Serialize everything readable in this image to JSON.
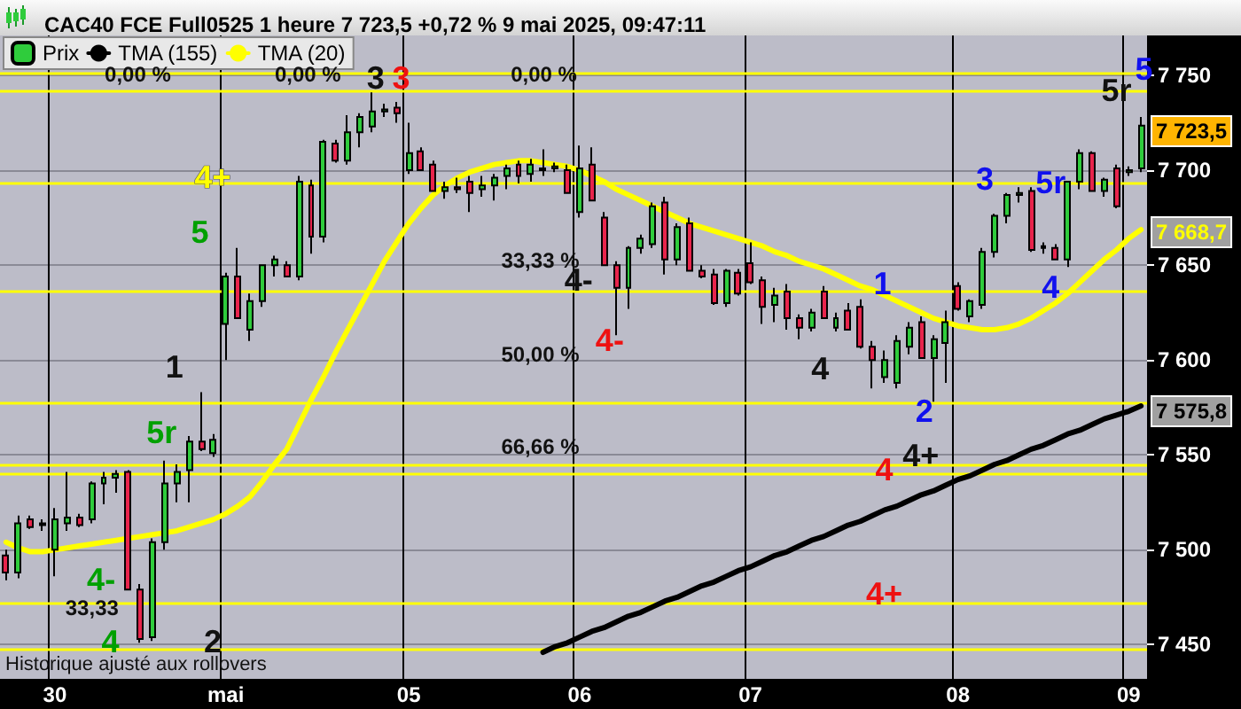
{
  "chart_data": {
    "type": "candlestick",
    "title": "CAC40 FCE Full0525 1 heure 7 723,5 +0,72 % 9 mai 2025, 09:47:11",
    "categories": [
      null,
      null,
      null,
      null,
      "30",
      null,
      null,
      null,
      null,
      null,
      null,
      null,
      null,
      null,
      null,
      null,
      null,
      null,
      "mai",
      null,
      null,
      null,
      null,
      null,
      null,
      null,
      null,
      null,
      null,
      null,
      null,
      null,
      null,
      "05",
      null,
      null,
      null,
      null,
      null,
      null,
      null,
      null,
      null,
      null,
      null,
      null,
      null,
      "06",
      null,
      null,
      null,
      null,
      null,
      null,
      null,
      null,
      null,
      null,
      null,
      null,
      null,
      "07",
      null,
      null,
      null,
      null,
      null,
      null,
      null,
      null,
      null,
      null,
      null,
      null,
      null,
      null,
      null,
      null,
      "08",
      null,
      null,
      null,
      null,
      null,
      null,
      null,
      null,
      null,
      null,
      null,
      null,
      null,
      "09",
      null
    ],
    "series": [
      {
        "name": "Prix",
        "color": "#2fcc3c",
        "ohlc": [
          [
            7497,
            7500,
            7484,
            7488
          ],
          [
            7488,
            7518,
            7485,
            7514
          ],
          [
            7516,
            7518,
            7511,
            7512
          ],
          [
            7513,
            7516,
            7510,
            7514
          ],
          [
            7500,
            7522,
            7486,
            7516
          ],
          [
            7514,
            7541,
            7510,
            7517
          ],
          [
            7517,
            7519,
            7512,
            7513
          ],
          [
            7516,
            7536,
            7514,
            7535
          ],
          [
            7535,
            7541,
            7524,
            7538
          ],
          [
            7538,
            7542,
            7530,
            7540
          ],
          [
            7541,
            7542,
            7479,
            7479
          ],
          [
            7479,
            7482,
            7451,
            7453
          ],
          [
            7454,
            7506,
            7452,
            7504
          ],
          [
            7504,
            7547,
            7500,
            7535
          ],
          [
            7535,
            7545,
            7525,
            7541
          ],
          [
            7542,
            7560,
            7525,
            7557
          ],
          [
            7557,
            7583,
            7552,
            7553
          ],
          [
            7551,
            7561,
            7549,
            7558
          ],
          [
            7619,
            7646,
            7600,
            7644
          ],
          [
            7644,
            7659,
            7622,
            7622
          ],
          [
            7616,
            7635,
            7610,
            7631
          ],
          [
            7631,
            7650,
            7628,
            7650
          ],
          [
            7650,
            7655,
            7644,
            7653
          ],
          [
            7650,
            7652,
            7644,
            7644
          ],
          [
            7644,
            7697,
            7642,
            7694
          ],
          [
            7692,
            7695,
            7656,
            7665
          ],
          [
            7665,
            7716,
            7662,
            7715
          ],
          [
            7714,
            7716,
            7704,
            7705
          ],
          [
            7705,
            7729,
            7703,
            7720
          ],
          [
            7720,
            7730,
            7712,
            7728
          ],
          [
            7723,
            7741,
            7720,
            7731
          ],
          [
            7731,
            7735,
            7728,
            7732
          ],
          [
            7733,
            7736,
            7725,
            7730
          ],
          [
            7700,
            7725,
            7698,
            7709
          ],
          [
            7710,
            7712,
            7700,
            7700
          ],
          [
            7703,
            7705,
            7689,
            7689
          ],
          [
            7689,
            7694,
            7685,
            7691
          ],
          [
            7691,
            7696,
            7688,
            7690
          ],
          [
            7694,
            7697,
            7678,
            7688
          ],
          [
            7690,
            7697,
            7686,
            7692
          ],
          [
            7692,
            7698,
            7684,
            7696
          ],
          [
            7697,
            7703,
            7690,
            7701
          ],
          [
            7703,
            7705,
            7693,
            7697
          ],
          [
            7698,
            7706,
            7694,
            7703
          ],
          [
            7700,
            7711,
            7697,
            7701
          ],
          [
            7701,
            7704,
            7699,
            7702
          ],
          [
            7700,
            7703,
            7688,
            7688
          ],
          [
            7678,
            7713,
            7675,
            7701
          ],
          [
            7703,
            7712,
            7684,
            7684
          ],
          [
            7675,
            7678,
            7650,
            7650
          ],
          [
            7650,
            7652,
            7613,
            7638
          ],
          [
            7638,
            7660,
            7627,
            7659
          ],
          [
            7659,
            7666,
            7656,
            7664
          ],
          [
            7661,
            7683,
            7659,
            7681
          ],
          [
            7683,
            7686,
            7645,
            7653
          ],
          [
            7653,
            7672,
            7650,
            7670
          ],
          [
            7672,
            7675,
            7647,
            7647
          ],
          [
            7647,
            7650,
            7643,
            7644
          ],
          [
            7645,
            7648,
            7629,
            7630
          ],
          [
            7630,
            7648,
            7628,
            7647
          ],
          [
            7646,
            7648,
            7634,
            7635
          ],
          [
            7651,
            7662,
            7640,
            7641
          ],
          [
            7642,
            7644,
            7619,
            7628
          ],
          [
            7629,
            7638,
            7620,
            7634
          ],
          [
            7636,
            7640,
            7616,
            7622
          ],
          [
            7622,
            7624,
            7611,
            7617
          ],
          [
            7617,
            7627,
            7615,
            7625
          ],
          [
            7636,
            7639,
            7622,
            7622
          ],
          [
            7617,
            7625,
            7615,
            7622
          ],
          [
            7626,
            7630,
            7616,
            7616
          ],
          [
            7628,
            7632,
            7606,
            7607
          ],
          [
            7607,
            7610,
            7585,
            7600
          ],
          [
            7591,
            7605,
            7588,
            7600
          ],
          [
            7588,
            7613,
            7585,
            7610
          ],
          [
            7607,
            7620,
            7603,
            7617
          ],
          [
            7620,
            7623,
            7601,
            7601
          ],
          [
            7601,
            7613,
            7578,
            7611
          ],
          [
            7609,
            7626,
            7588,
            7620
          ],
          [
            7639,
            7641,
            7626,
            7627
          ],
          [
            7623,
            7632,
            7620,
            7631
          ],
          [
            7629,
            7659,
            7627,
            7657
          ],
          [
            7657,
            7677,
            7654,
            7676
          ],
          [
            7676,
            7688,
            7672,
            7687
          ],
          [
            7687,
            7691,
            7683,
            7688
          ],
          [
            7689,
            7691,
            7657,
            7658
          ],
          [
            7660,
            7662,
            7656,
            7659
          ],
          [
            7659,
            7661,
            7653,
            7653
          ],
          [
            7653,
            7694,
            7649,
            7694
          ],
          [
            7694,
            7711,
            7690,
            7709
          ],
          [
            7709,
            7710,
            7689,
            7689
          ],
          [
            7689,
            7696,
            7686,
            7695
          ],
          [
            7701,
            7703,
            7680,
            7681
          ],
          [
            7699,
            7702,
            7697,
            7700
          ],
          [
            7701,
            7728,
            7699,
            7723.5
          ]
        ],
        "colors": [
          "#e8244c",
          "#2fcc3c",
          "#e8244c",
          "#2fcc3c",
          "#2fcc3c",
          "#2fcc3c",
          "#e8244c",
          "#2fcc3c",
          "#2fcc3c",
          "#2fcc3c",
          "#e8244c",
          "#e8244c",
          "#2fcc3c",
          "#2fcc3c",
          "#2fcc3c",
          "#2fcc3c",
          "#e8244c",
          "#2fcc3c",
          "#2fcc3c",
          "#e8244c",
          "#2fcc3c",
          "#2fcc3c",
          "#2fcc3c",
          "#e8244c",
          "#2fcc3c",
          "#e8244c",
          "#2fcc3c",
          "#e8244c",
          "#2fcc3c",
          "#2fcc3c",
          "#2fcc3c",
          "#2fcc3c",
          "#e8244c",
          "#2fcc3c",
          "#e8244c",
          "#e8244c",
          "#2fcc3c",
          "#e8244c",
          "#e8244c",
          "#2fcc3c",
          "#2fcc3c",
          "#2fcc3c",
          "#e8244c",
          "#2fcc3c",
          "#2fcc3c",
          "#2fcc3c",
          "#e8244c",
          "#2fcc3c",
          "#e8244c",
          "#e8244c",
          "#e8244c",
          "#2fcc3c",
          "#2fcc3c",
          "#2fcc3c",
          "#e8244c",
          "#2fcc3c",
          "#e8244c",
          "#e8244c",
          "#e8244c",
          "#2fcc3c",
          "#e8244c",
          "#e8244c",
          "#e8244c",
          "#2fcc3c",
          "#e8244c",
          "#e8244c",
          "#2fcc3c",
          "#e8244c",
          "#2fcc3c",
          "#e8244c",
          "#e8244c",
          "#e8244c",
          "#2fcc3c",
          "#2fcc3c",
          "#2fcc3c",
          "#e8244c",
          "#2fcc3c",
          "#2fcc3c",
          "#e8244c",
          "#2fcc3c",
          "#2fcc3c",
          "#2fcc3c",
          "#2fcc3c",
          "#2fcc3c",
          "#e8244c",
          "#e8244c",
          "#e8244c",
          "#2fcc3c",
          "#2fcc3c",
          "#e8244c",
          "#2fcc3c",
          "#e8244c",
          "#2fcc3c",
          "#2fcc3c"
        ]
      },
      {
        "name": "TMA (155)",
        "type": "line",
        "color": "#000000",
        "values": [
          null,
          null,
          null,
          null,
          null,
          null,
          null,
          null,
          null,
          null,
          null,
          null,
          null,
          null,
          null,
          null,
          null,
          null,
          null,
          null,
          null,
          null,
          null,
          null,
          null,
          null,
          null,
          null,
          null,
          null,
          null,
          null,
          null,
          null,
          null,
          null,
          null,
          null,
          null,
          null,
          null,
          null,
          null,
          null,
          7446,
          7449,
          7451,
          7454,
          7457,
          7459,
          7462,
          7465,
          7467,
          7470,
          7473,
          7475,
          7478,
          7481,
          7483,
          7486,
          7489,
          7491,
          7494,
          7497,
          7499,
          7502,
          7505,
          7507,
          7510,
          7513,
          7515,
          7518,
          7521,
          7523,
          7526,
          7529,
          7531,
          7534,
          7537,
          7539,
          7542,
          7545,
          7547,
          7550,
          7553,
          7555,
          7558,
          7561,
          7563,
          7566,
          7569,
          7571,
          7573,
          7575.8
        ]
      },
      {
        "name": "TMA (20)",
        "type": "line",
        "color": "#ffff00",
        "values": [
          7504,
          7501,
          7499,
          7499,
          7500,
          7501,
          7502,
          7503,
          7504,
          7505,
          7506,
          7507,
          7508,
          7509,
          7510,
          7512,
          7514,
          7516,
          7519,
          7523,
          7528,
          7536,
          7545,
          7553,
          7566,
          7579,
          7591,
          7604,
          7616,
          7628,
          7640,
          7652,
          7662,
          7672,
          7680,
          7687,
          7692,
          7696,
          7699,
          7701,
          7703,
          7704,
          7705,
          7705,
          7704,
          7703,
          7702,
          7700,
          7697,
          7694,
          7690,
          7687,
          7684,
          7681,
          7678,
          7675,
          7672,
          7670,
          7668,
          7666,
          7664,
          7662,
          7660,
          7657,
          7655,
          7652,
          7650,
          7648,
          7645,
          7642,
          7639,
          7637,
          7634,
          7631,
          7628,
          7625,
          7622,
          7620,
          7618,
          7617,
          7616,
          7616,
          7617,
          7619,
          7622,
          7626,
          7630,
          7635,
          7641,
          7647,
          7653,
          7658,
          7664,
          7668.7
        ]
      }
    ],
    "ylim": [
      7432,
      7771
    ],
    "yticks": [
      {
        "value": 7450,
        "label": "7 450"
      },
      {
        "value": 7500,
        "label": "7 500"
      },
      {
        "value": 7550,
        "label": "7 550"
      },
      {
        "value": 7600,
        "label": "7 600"
      },
      {
        "value": 7650,
        "label": "7 650"
      },
      {
        "value": 7700,
        "label": "7 700"
      },
      {
        "value": 7750,
        "label": "7 750"
      }
    ],
    "ref_lines": [
      {
        "axis": "y",
        "value": 7751,
        "color": "#ffff00"
      },
      {
        "axis": "y",
        "value": 7742,
        "color": "#ffff00"
      },
      {
        "axis": "y",
        "value": 7693,
        "color": "#ffff00"
      },
      {
        "axis": "y",
        "value": 7636,
        "color": "#ffff00"
      },
      {
        "axis": "y",
        "value": 7577,
        "color": "#ffff00"
      },
      {
        "axis": "y",
        "value": 7545,
        "color": "#ffff00"
      },
      {
        "axis": "y",
        "value": 7540,
        "color": "#ffff00"
      },
      {
        "axis": "y",
        "value": 7472,
        "color": "#ffff00"
      },
      {
        "axis": "y",
        "value": 7448,
        "color": "#ffff00"
      }
    ],
    "annotations": [
      "3",
      "3",
      "4+",
      "5",
      "1",
      "5r",
      "4-",
      "4",
      "2",
      "4-",
      "4-",
      "4",
      "1",
      "2",
      "4+",
      "4",
      "4+",
      "3",
      "5r",
      "4",
      "5r",
      "5",
      "0,00 %",
      "0,00 %",
      "0,00 %",
      "33,33 %",
      "50,00 %",
      "66,66 %",
      "33,33",
      "Historique ajusté aux rollovers",
      "7 723,5",
      "7 668,7",
      "7 575,8"
    ],
    "grid": true,
    "legend": "top left",
    "marker": "none"
  }
}
